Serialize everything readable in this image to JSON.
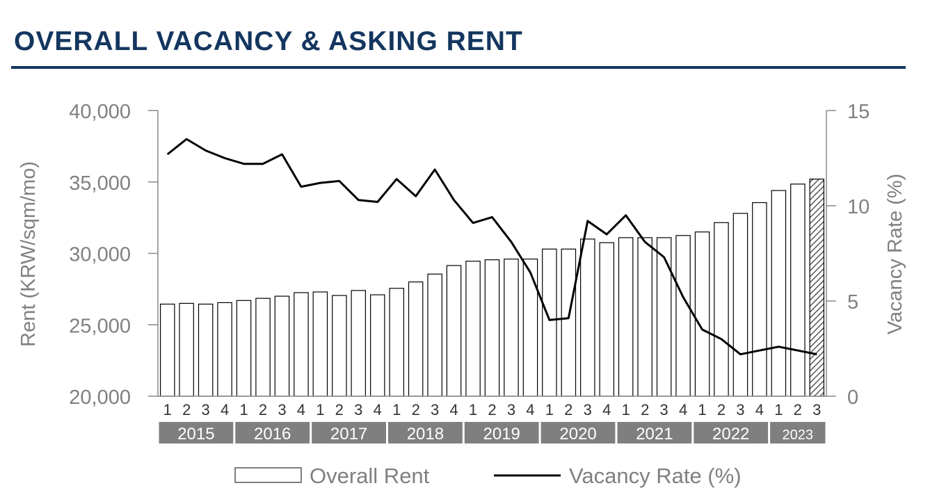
{
  "colors": {
    "title": "#14365f",
    "axis_text": "#808080",
    "year_band": "#7f7f7f",
    "series_line": "#000000",
    "bar_fill": "#ffffff",
    "bar_stroke": "#000000"
  },
  "chart_data": {
    "type": "bar",
    "title": "OVERALL VACANCY & ASKING RENT",
    "quarters": [
      "1",
      "2",
      "3",
      "4",
      "1",
      "2",
      "3",
      "4",
      "1",
      "2",
      "3",
      "4",
      "1",
      "2",
      "3",
      "4",
      "1",
      "2",
      "3",
      "4",
      "1",
      "2",
      "3",
      "4",
      "1",
      "2",
      "3",
      "4",
      "1",
      "2",
      "3",
      "4",
      "1",
      "2",
      "3"
    ],
    "years": [
      {
        "label": "2015",
        "quarters": 4
      },
      {
        "label": "2016",
        "quarters": 4
      },
      {
        "label": "2017",
        "quarters": 4
      },
      {
        "label": "2018",
        "quarters": 4
      },
      {
        "label": "2019",
        "quarters": 4
      },
      {
        "label": "2020",
        "quarters": 4
      },
      {
        "label": "2021",
        "quarters": 4
      },
      {
        "label": "2022",
        "quarters": 4
      },
      {
        "label": "2023",
        "quarters": 3
      }
    ],
    "y_left": {
      "label": "Rent (KRW/sqm/mo)",
      "min": 20000,
      "max": 40000,
      "ticks": [
        "20,000",
        "25,000",
        "30,000",
        "35,000",
        "40,000"
      ]
    },
    "y_right": {
      "label": "Vacancy Rate (%)",
      "min": 0,
      "max": 15,
      "ticks": [
        "0",
        "5",
        "10",
        "15"
      ]
    },
    "series": [
      {
        "name": "Overall Rent",
        "type": "bar",
        "axis": "left",
        "values": [
          26450,
          26500,
          26450,
          26550,
          26700,
          26850,
          27000,
          27250,
          27300,
          27050,
          27400,
          27100,
          27550,
          28000,
          28550,
          29150,
          29450,
          29550,
          29600,
          29600,
          30300,
          30300,
          31000,
          30750,
          31100,
          31100,
          31100,
          31250,
          31500,
          32150,
          32800,
          33550,
          34400,
          34850,
          35200
        ],
        "hatched_index": 34
      },
      {
        "name": "Vacancy Rate (%)",
        "type": "line",
        "axis": "right",
        "values": [
          12.7,
          13.5,
          12.9,
          12.5,
          12.2,
          12.2,
          12.7,
          11.0,
          11.2,
          11.3,
          10.3,
          10.2,
          11.4,
          10.5,
          11.9,
          10.3,
          9.1,
          9.4,
          8.1,
          6.5,
          4.0,
          4.1,
          9.2,
          8.5,
          9.5,
          8.1,
          7.3,
          5.2,
          3.5,
          3.0,
          2.2,
          2.4,
          2.6,
          2.4,
          2.2
        ]
      }
    ],
    "legend": {
      "position": "bottom",
      "items": [
        "Overall Rent",
        "Vacancy Rate (%)"
      ]
    },
    "grid": false
  }
}
